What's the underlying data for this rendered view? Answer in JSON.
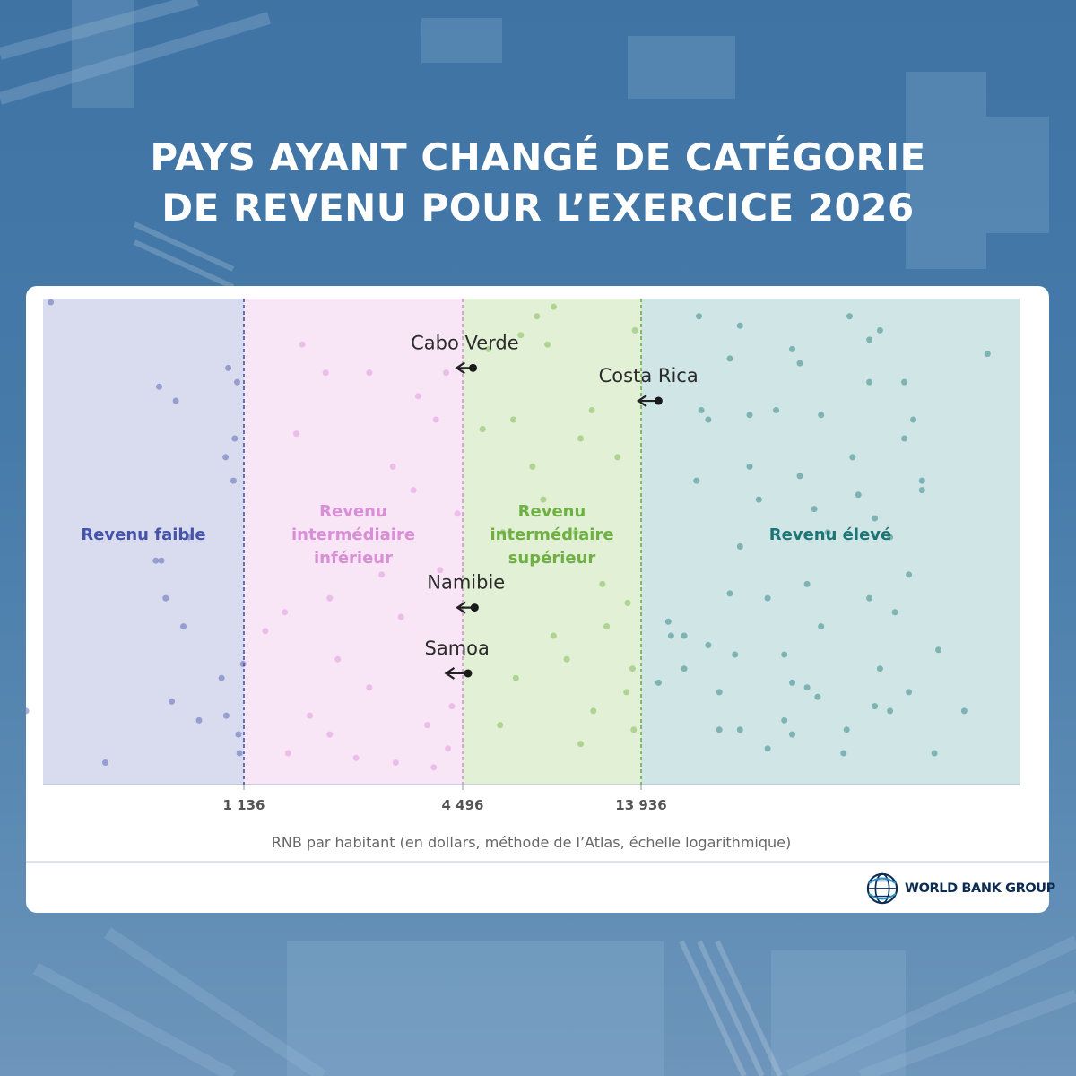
{
  "title_lines": [
    "PAYS AYANT CHANGÉ DE CATÉGORIE",
    "DE REVENU POUR L’EXERCICE 2026"
  ],
  "logo_text": "WORLD BANK GROUP",
  "colors": {
    "low": "#4553a8",
    "lower_middle": "#d98fd6",
    "upper_middle": "#6fb043",
    "high": "#1d7474",
    "low_bg": "#d9dcef",
    "lower_middle_bg": "#f8e5f6",
    "upper_middle_bg": "#e2f0d6",
    "high_bg": "#cfe5e6"
  },
  "chart_data": {
    "type": "scatter",
    "x_scale": "log",
    "xlabel": "RNB par habitant (en dollars, méthode de l’Atlas, échelle logarithmique)",
    "thresholds": [
      {
        "value": 1136,
        "label": "1 136"
      },
      {
        "value": 4496,
        "label": "4 496"
      },
      {
        "value": 13936,
        "label": "13 936"
      }
    ],
    "categories": [
      {
        "name": "Revenu faible",
        "lines": [
          "Revenu faible"
        ],
        "color_key": "low"
      },
      {
        "name": "Revenu intermédiaire inférieur",
        "lines": [
          "Revenu",
          "intermédiaire",
          "inférieur"
        ],
        "color_key": "lower_middle"
      },
      {
        "name": "Revenu intermédiaire supérieur",
        "lines": [
          "Revenu",
          "intermédiaire",
          "supérieur"
        ],
        "color_key": "upper_middle"
      },
      {
        "name": "Revenu élevé",
        "lines": [
          "Revenu élevé"
        ],
        "color_key": "high"
      }
    ],
    "changes": [
      {
        "country": "Cabo Verde",
        "from": 4800,
        "to": 4330,
        "row": 0.14
      },
      {
        "country": "Costa Rica",
        "from": 15100,
        "to": 13700,
        "row": 0.21
      },
      {
        "country": "Namibie",
        "from": 4850,
        "to": 4350,
        "row": 0.65
      },
      {
        "country": "Samoa",
        "from": 4650,
        "to": 4050,
        "row": 0.79
      }
    ],
    "points": [
      {
        "x": 265,
        "r": 0.0
      },
      {
        "x": 600,
        "r": 0.18
      },
      {
        "x": 680,
        "r": 0.21
      },
      {
        "x": 1010,
        "r": 0.14
      },
      {
        "x": 1080,
        "r": 0.17
      },
      {
        "x": 1060,
        "r": 0.29
      },
      {
        "x": 990,
        "r": 0.33
      },
      {
        "x": 1050,
        "r": 0.38
      },
      {
        "x": 750,
        "r": 0.5
      },
      {
        "x": 585,
        "r": 0.55
      },
      {
        "x": 610,
        "r": 0.55
      },
      {
        "x": 630,
        "r": 0.63
      },
      {
        "x": 720,
        "r": 0.69
      },
      {
        "x": 1130,
        "r": 0.77
      },
      {
        "x": 660,
        "r": 0.85
      },
      {
        "x": 220,
        "r": 0.87
      },
      {
        "x": 810,
        "r": 0.89
      },
      {
        "x": 960,
        "r": 0.8
      },
      {
        "x": 995,
        "r": 0.88
      },
      {
        "x": 1090,
        "r": 0.92
      },
      {
        "x": 1100,
        "r": 0.96
      },
      {
        "x": 400,
        "r": 0.98
      },
      {
        "x": 1640,
        "r": 0.09
      },
      {
        "x": 1900,
        "r": 0.15
      },
      {
        "x": 2500,
        "r": 0.15
      },
      {
        "x": 3400,
        "r": 0.2
      },
      {
        "x": 4050,
        "r": 0.15
      },
      {
        "x": 1580,
        "r": 0.28
      },
      {
        "x": 3800,
        "r": 0.25
      },
      {
        "x": 2900,
        "r": 0.35
      },
      {
        "x": 3300,
        "r": 0.4
      },
      {
        "x": 4350,
        "r": 0.45
      },
      {
        "x": 3900,
        "r": 0.57
      },
      {
        "x": 1470,
        "r": 0.66
      },
      {
        "x": 1950,
        "r": 0.63
      },
      {
        "x": 2700,
        "r": 0.58
      },
      {
        "x": 1300,
        "r": 0.7
      },
      {
        "x": 3050,
        "r": 0.67
      },
      {
        "x": 2050,
        "r": 0.76
      },
      {
        "x": 2500,
        "r": 0.82
      },
      {
        "x": 1720,
        "r": 0.88
      },
      {
        "x": 3600,
        "r": 0.9
      },
      {
        "x": 4200,
        "r": 0.86
      },
      {
        "x": 1950,
        "r": 0.92
      },
      {
        "x": 4100,
        "r": 0.95
      },
      {
        "x": 2950,
        "r": 0.98
      },
      {
        "x": 2300,
        "r": 0.97
      },
      {
        "x": 3750,
        "r": 0.99
      },
      {
        "x": 1500,
        "r": 0.96
      },
      {
        "x": 5300,
        "r": 0.1
      },
      {
        "x": 6500,
        "r": 0.07
      },
      {
        "x": 8000,
        "r": 0.01
      },
      {
        "x": 7200,
        "r": 0.03
      },
      {
        "x": 7700,
        "r": 0.09
      },
      {
        "x": 5100,
        "r": 0.27
      },
      {
        "x": 6200,
        "r": 0.25
      },
      {
        "x": 10200,
        "r": 0.23
      },
      {
        "x": 9500,
        "r": 0.29
      },
      {
        "x": 7000,
        "r": 0.35
      },
      {
        "x": 12000,
        "r": 0.33
      },
      {
        "x": 7500,
        "r": 0.42
      },
      {
        "x": 5800,
        "r": 0.49
      },
      {
        "x": 9200,
        "r": 0.49
      },
      {
        "x": 10900,
        "r": 0.6
      },
      {
        "x": 12800,
        "r": 0.64
      },
      {
        "x": 11200,
        "r": 0.69
      },
      {
        "x": 8700,
        "r": 0.76
      },
      {
        "x": 6300,
        "r": 0.8
      },
      {
        "x": 10300,
        "r": 0.87
      },
      {
        "x": 12700,
        "r": 0.83
      },
      {
        "x": 9500,
        "r": 0.94
      },
      {
        "x": 5700,
        "r": 0.9
      },
      {
        "x": 8000,
        "r": 0.71
      },
      {
        "x": 13200,
        "r": 0.78
      },
      {
        "x": 13400,
        "r": 0.06
      },
      {
        "x": 13300,
        "r": 0.91
      },
      {
        "x": 18200,
        "r": 0.03
      },
      {
        "x": 22000,
        "r": 0.05
      },
      {
        "x": 28000,
        "r": 0.1
      },
      {
        "x": 21000,
        "r": 0.12
      },
      {
        "x": 36500,
        "r": 0.03
      },
      {
        "x": 42000,
        "r": 0.06
      },
      {
        "x": 40000,
        "r": 0.08
      },
      {
        "x": 69000,
        "r": 0.11
      },
      {
        "x": 29000,
        "r": 0.13
      },
      {
        "x": 47000,
        "r": 0.17
      },
      {
        "x": 40000,
        "r": 0.17
      },
      {
        "x": 18400,
        "r": 0.23
      },
      {
        "x": 23000,
        "r": 0.24
      },
      {
        "x": 26000,
        "r": 0.23
      },
      {
        "x": 32000,
        "r": 0.24
      },
      {
        "x": 19000,
        "r": 0.25
      },
      {
        "x": 49000,
        "r": 0.25
      },
      {
        "x": 37000,
        "r": 0.33
      },
      {
        "x": 29000,
        "r": 0.37
      },
      {
        "x": 23000,
        "r": 0.35
      },
      {
        "x": 47000,
        "r": 0.29
      },
      {
        "x": 38000,
        "r": 0.41
      },
      {
        "x": 31000,
        "r": 0.44
      },
      {
        "x": 24000,
        "r": 0.42
      },
      {
        "x": 18000,
        "r": 0.38
      },
      {
        "x": 51000,
        "r": 0.38
      },
      {
        "x": 51000,
        "r": 0.4
      },
      {
        "x": 41000,
        "r": 0.46
      },
      {
        "x": 33000,
        "r": 0.49
      },
      {
        "x": 44000,
        "r": 0.5
      },
      {
        "x": 22000,
        "r": 0.52
      },
      {
        "x": 48000,
        "r": 0.58
      },
      {
        "x": 21000,
        "r": 0.62
      },
      {
        "x": 30000,
        "r": 0.6
      },
      {
        "x": 25000,
        "r": 0.63
      },
      {
        "x": 55000,
        "r": 0.74
      },
      {
        "x": 17000,
        "r": 0.71
      },
      {
        "x": 32000,
        "r": 0.69
      },
      {
        "x": 40000,
        "r": 0.63
      },
      {
        "x": 15800,
        "r": 0.68
      },
      {
        "x": 45000,
        "r": 0.66
      },
      {
        "x": 16000,
        "r": 0.71
      },
      {
        "x": 19000,
        "r": 0.73
      },
      {
        "x": 21500,
        "r": 0.75
      },
      {
        "x": 27000,
        "r": 0.75
      },
      {
        "x": 15100,
        "r": 0.81
      },
      {
        "x": 17000,
        "r": 0.78
      },
      {
        "x": 42000,
        "r": 0.78
      },
      {
        "x": 48000,
        "r": 0.83
      },
      {
        "x": 30000,
        "r": 0.82
      },
      {
        "x": 20000,
        "r": 0.83
      },
      {
        "x": 28000,
        "r": 0.81
      },
      {
        "x": 31500,
        "r": 0.84
      },
      {
        "x": 22000,
        "r": 0.91
      },
      {
        "x": 36000,
        "r": 0.91
      },
      {
        "x": 41000,
        "r": 0.86
      },
      {
        "x": 62000,
        "r": 0.87
      },
      {
        "x": 25000,
        "r": 0.95
      },
      {
        "x": 28000,
        "r": 0.92
      },
      {
        "x": 35500,
        "r": 0.96
      },
      {
        "x": 54000,
        "r": 0.96
      },
      {
        "x": 44000,
        "r": 0.87
      },
      {
        "x": 20000,
        "r": 0.91
      },
      {
        "x": 27000,
        "r": 0.89
      }
    ]
  }
}
